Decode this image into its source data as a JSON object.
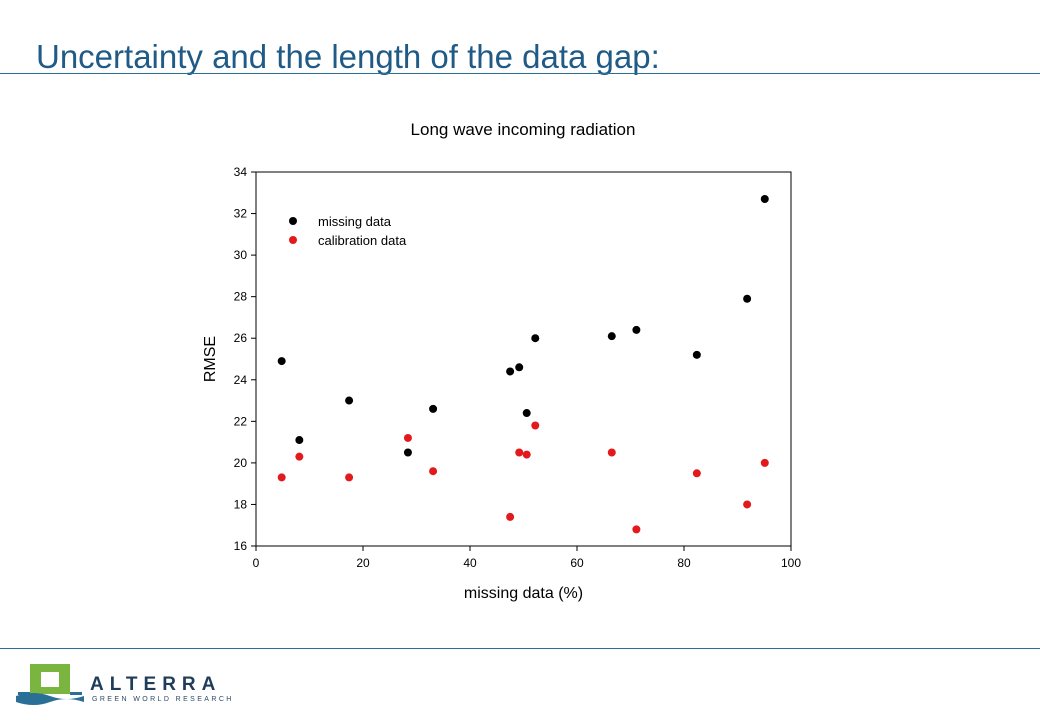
{
  "slide": {
    "title": "Uncertainty and the length of the data gap:"
  },
  "footer": {
    "logo_text": "ALTERRA",
    "logo_tagline": "GREEN WORLD RESEARCH",
    "logo_colors": {
      "green": "#7ab540",
      "blue": "#2a6f96",
      "dark": "#1f3d5a"
    }
  },
  "colors": {
    "title": "#1f5b86",
    "rule": "#2a6f96",
    "missing": "#000000",
    "calibration": "#e31a1c"
  },
  "chart_data": {
    "type": "scatter",
    "title": "Long wave incoming radiation",
    "xlabel": "missing data (%)",
    "ylabel": "RMSE",
    "xlim": [
      0,
      100
    ],
    "ylim": [
      16,
      34
    ],
    "xticks": [
      0,
      20,
      40,
      60,
      80,
      100
    ],
    "yticks": [
      16,
      18,
      20,
      22,
      24,
      26,
      28,
      30,
      32,
      34
    ],
    "grid": false,
    "legend_position": "top-left",
    "series": [
      {
        "name": "missing data",
        "color": "#000000",
        "points": [
          [
            4.8,
            24.9
          ],
          [
            8.1,
            21.1
          ],
          [
            17.4,
            23.0
          ],
          [
            28.4,
            20.5
          ],
          [
            33.1,
            22.6
          ],
          [
            47.5,
            24.4
          ],
          [
            49.2,
            24.6
          ],
          [
            50.6,
            22.4
          ],
          [
            52.2,
            26.0
          ],
          [
            66.5,
            26.1
          ],
          [
            71.1,
            26.4
          ],
          [
            82.4,
            25.2
          ],
          [
            91.8,
            27.9
          ],
          [
            95.1,
            32.7
          ]
        ]
      },
      {
        "name": "calibration data",
        "color": "#e31a1c",
        "points": [
          [
            4.8,
            19.3
          ],
          [
            8.1,
            20.3
          ],
          [
            17.4,
            19.3
          ],
          [
            28.4,
            21.2
          ],
          [
            33.1,
            19.6
          ],
          [
            47.5,
            17.4
          ],
          [
            49.2,
            20.5
          ],
          [
            50.6,
            20.4
          ],
          [
            52.2,
            21.8
          ],
          [
            66.5,
            20.5
          ],
          [
            71.1,
            16.8
          ],
          [
            82.4,
            19.5
          ],
          [
            91.8,
            18.0
          ],
          [
            95.1,
            20.0
          ]
        ]
      }
    ]
  }
}
